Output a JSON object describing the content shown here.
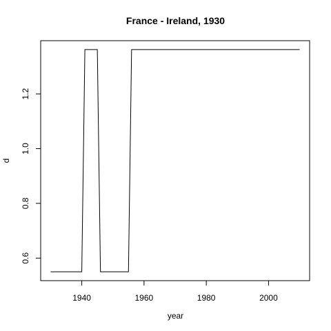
{
  "chart_data": {
    "type": "line",
    "title": "France - Ireland, 1930",
    "xlabel": "year",
    "ylabel": "d",
    "xlim": [
      1926.8,
      2013.2
    ],
    "ylim": [
      0.5176,
      1.3944
    ],
    "x_ticks": [
      1940,
      1960,
      1980,
      2000
    ],
    "y_ticks": [
      0.6,
      0.8,
      1.0,
      1.2
    ],
    "x_tick_labels": [
      "1940",
      "1960",
      "1980",
      "2000"
    ],
    "y_tick_labels": [
      "0.6",
      "0.8",
      "1.0",
      "1.2"
    ],
    "grid": false,
    "series": [
      {
        "color": "#000000",
        "x": [
          1930,
          1940,
          1941,
          1945,
          1946,
          1955,
          1956,
          2010
        ],
        "y": [
          0.55,
          0.55,
          1.362,
          1.362,
          0.55,
          0.55,
          1.362,
          1.362
        ]
      }
    ]
  }
}
